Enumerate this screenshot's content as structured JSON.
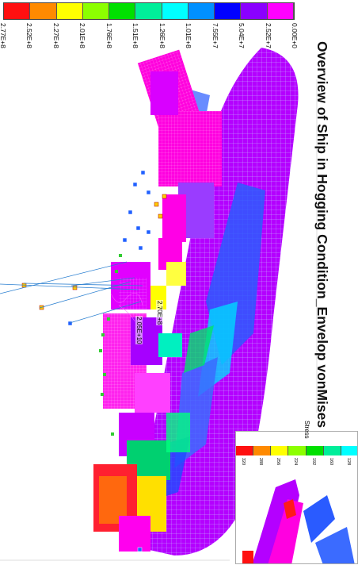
{
  "legend": {
    "colors": [
      "#ff1010",
      "#ff8a00",
      "#ffff00",
      "#8cff00",
      "#00e000",
      "#00ee9a",
      "#00ffff",
      "#0090ff",
      "#0000ff",
      "#8a00ff",
      "#ff00ff"
    ],
    "ticks": [
      "2.77E+8",
      "2.52E+8",
      "2.27E+8",
      "2.01E+8",
      "1.76E+8",
      "1.51E+8",
      "1.26E+8",
      "1.01E+8",
      "7.55E+7",
      "5.04E+7",
      "2.52E+7",
      "0.00E+0"
    ]
  },
  "title": "Overview of Ship in Hogging Condition_Envelop vonMises Stress",
  "inset": {
    "label": "Stress",
    "colors": [
      "#ff1010",
      "#ff8a00",
      "#ffff00",
      "#8cff00",
      "#00e000",
      "#00ee9a",
      "#00ffff"
    ],
    "ticks": [
      "320",
      "288",
      "256",
      "224",
      "192",
      "160",
      "128"
    ]
  },
  "probes": [
    "2.05E+10",
    "2.70E+8"
  ]
}
